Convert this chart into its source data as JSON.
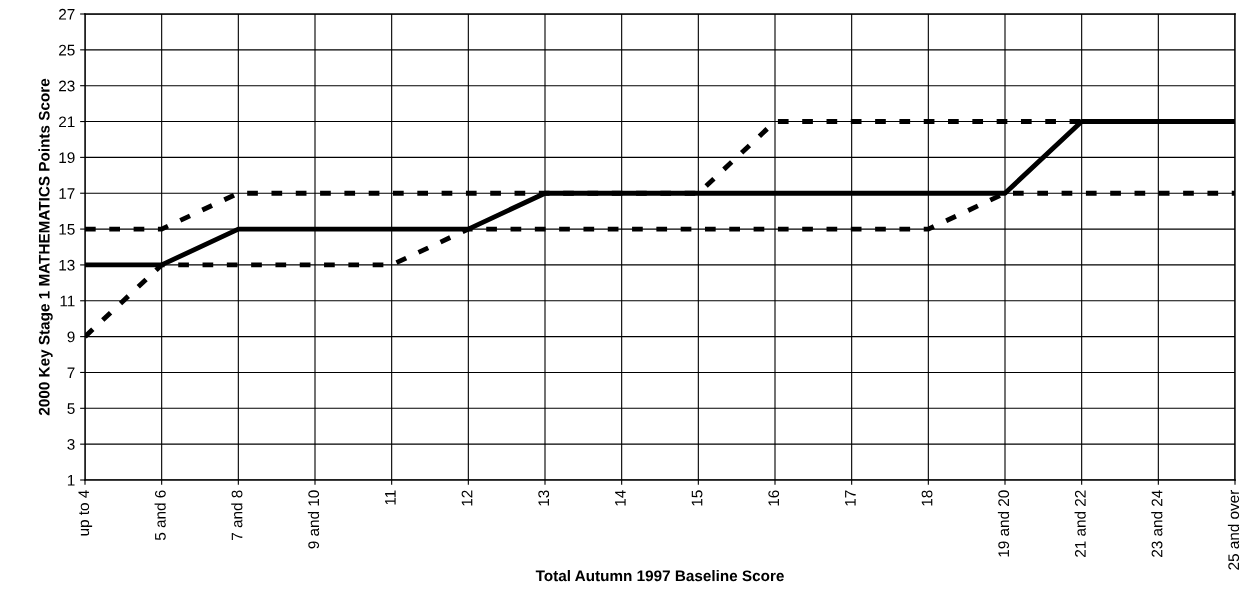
{
  "chart_data": {
    "type": "line",
    "xlabel": "Total Autumn 1997 Baseline Score",
    "ylabel": "2000 Key Stage 1 MATHEMATICS Points Score",
    "categories": [
      "up to 4",
      "5 and 6",
      "7 and 8",
      "9 and 10",
      "11",
      "12",
      "13",
      "14",
      "15",
      "16",
      "17",
      "18",
      "19 and 20",
      "21 and 22",
      "23 and 24",
      "25 and over"
    ],
    "series": [
      {
        "color": "#000000",
        "line_style": "solid",
        "values": [
          13,
          13,
          15,
          15,
          15,
          15,
          17,
          17,
          17,
          17,
          17,
          17,
          17,
          21,
          21,
          21
        ]
      },
      {
        "color": "#000000",
        "line_style": "dashed",
        "values": [
          15,
          15,
          17,
          17,
          17,
          17,
          17,
          17,
          17,
          21,
          21,
          21,
          21,
          21,
          21,
          21
        ]
      },
      {
        "color": "#000000",
        "line_style": "dashed",
        "values": [
          9,
          13,
          13,
          13,
          13,
          15,
          15,
          15,
          15,
          15,
          15,
          15,
          17,
          17,
          17,
          17
        ]
      }
    ],
    "ylim": [
      1,
      27
    ],
    "yticks": [
      1,
      3,
      5,
      7,
      9,
      11,
      13,
      15,
      17,
      19,
      21,
      23,
      25,
      27
    ],
    "grid": true,
    "marker": "none"
  }
}
